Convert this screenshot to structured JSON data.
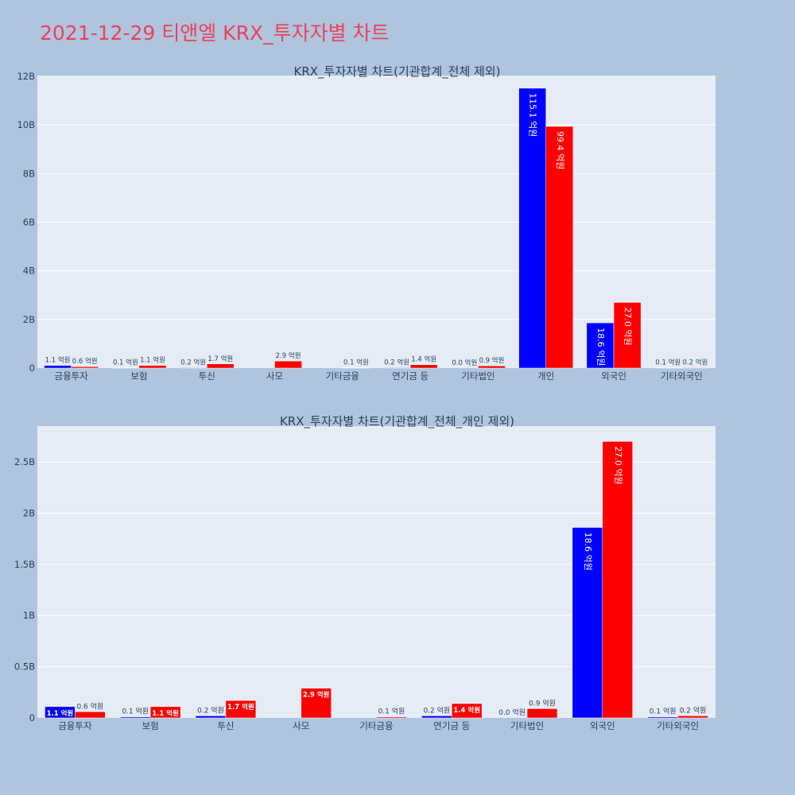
{
  "page": {
    "title": "2021-12-29 티앤엘 KRX_투자자별 차트"
  },
  "colors": {
    "background": "#b0c4de",
    "plot_background": "#e5ecf6",
    "title": "#e8435a",
    "series_a": "#0000ff",
    "series_b": "#ff0000"
  },
  "chart_data": [
    {
      "type": "bar",
      "title": "KRX_투자자별 차트(기관합계_전체 제외)",
      "xlabel": "",
      "ylabel": "",
      "ylim": [
        0,
        12000000000
      ],
      "yticks": [
        0,
        2000000000,
        4000000000,
        6000000000,
        8000000000,
        10000000000,
        12000000000
      ],
      "ytick_labels": [
        "0",
        "2B",
        "4B",
        "6B",
        "8B",
        "10B",
        "12B"
      ],
      "categories": [
        "금융투자",
        "보험",
        "투신",
        "사모",
        "기타금융",
        "연기금 등",
        "기타법인",
        "개인",
        "외국인",
        "기타외국인"
      ],
      "series": [
        {
          "color": "#0000ff",
          "values": [
            110000000,
            10000000,
            20000000,
            null,
            null,
            20000000,
            0,
            11510000000,
            1860000000,
            10000000
          ],
          "labels": [
            "1.1 억원",
            "0.1 억원",
            "0.2 억원",
            "",
            "",
            "0.2 억원",
            "0.0 억원",
            "115.1 억원",
            "18.6 억원",
            "0.1 억원"
          ]
        },
        {
          "color": "#ff0000",
          "values": [
            60000000,
            110000000,
            170000000,
            290000000,
            10000000,
            140000000,
            90000000,
            9940000000,
            2700000000,
            20000000
          ],
          "labels": [
            "0.6 억원",
            "1.1 억원",
            "1.7 억원",
            "2.9 억원",
            "0.1 억원",
            "1.4 억원",
            "0.9 억원",
            "99.4 억원",
            "27.0 억원",
            "0.2 억원"
          ]
        }
      ],
      "grid": true,
      "legend": "none"
    },
    {
      "type": "bar",
      "title": "KRX_투자자별 차트(기관합계_전체_개인 제외)",
      "xlabel": "",
      "ylabel": "",
      "ylim": [
        0,
        2850000000
      ],
      "yticks": [
        0,
        500000000,
        1000000000,
        1500000000,
        2000000000,
        2500000000
      ],
      "ytick_labels": [
        "0",
        "0.5B",
        "1B",
        "1.5B",
        "2B",
        "2.5B"
      ],
      "categories": [
        "금융투자",
        "보험",
        "투신",
        "사모",
        "기타금융",
        "연기금 등",
        "기타법인",
        "외국인",
        "기타외국인"
      ],
      "series": [
        {
          "color": "#0000ff",
          "values": [
            110000000,
            10000000,
            20000000,
            null,
            null,
            20000000,
            0,
            1860000000,
            10000000
          ],
          "labels": [
            "1.1 억원",
            "0.1 억원",
            "0.2 억원",
            "",
            "",
            "0.2 억원",
            "0.0 억원",
            "18.6 억원",
            "0.1 억원"
          ]
        },
        {
          "color": "#ff0000",
          "values": [
            60000000,
            110000000,
            170000000,
            290000000,
            10000000,
            140000000,
            90000000,
            2700000000,
            20000000
          ],
          "labels": [
            "0.6 억원",
            "1.1 억원",
            "1.7 억원",
            "2.9 억원",
            "0.1 억원",
            "1.4 억원",
            "0.9 억원",
            "27.0 억원",
            "0.2 억원"
          ]
        }
      ],
      "grid": true,
      "legend": "none"
    }
  ]
}
